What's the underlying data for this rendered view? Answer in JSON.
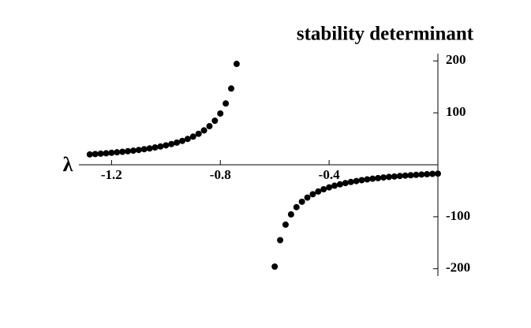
{
  "chart_data": {
    "type": "scatter",
    "title": "stability determinant",
    "x_axis_label": "λ",
    "x": [
      -1.28,
      -1.26,
      -1.24,
      -1.22,
      -1.2,
      -1.18,
      -1.16,
      -1.14,
      -1.12,
      -1.1,
      -1.08,
      -1.06,
      -1.04,
      -1.02,
      -1.0,
      -0.98,
      -0.96,
      -0.94,
      -0.92,
      -0.9,
      -0.88,
      -0.86,
      -0.84,
      -0.82,
      -0.8,
      -0.78,
      -0.76,
      -0.74,
      -0.6,
      -0.58,
      -0.56,
      -0.54,
      -0.52,
      -0.5,
      -0.48,
      -0.46,
      -0.44,
      -0.42,
      -0.4,
      -0.38,
      -0.36,
      -0.34,
      -0.32,
      -0.3,
      -0.28,
      -0.26,
      -0.24,
      -0.22,
      -0.2,
      -0.18,
      -0.16,
      -0.14,
      -0.12,
      -0.1,
      -0.08,
      -0.06,
      -0.04,
      -0.02,
      0.0
    ],
    "values": [
      20.0,
      20.7,
      21.4,
      22.2,
      23.1,
      24.0,
      25.0,
      26.1,
      27.2,
      28.5,
      30.0,
      31.5,
      33.3,
      35.2,
      37.4,
      39.9,
      42.7,
      46.0,
      49.8,
      54.2,
      59.6,
      66.2,
      74.3,
      84.8,
      98.7,
      118.0,
      146.8,
      194.2,
      -196.0,
      -145.1,
      -115.2,
      -95.5,
      -81.5,
      -71.1,
      -63.1,
      -56.7,
      -51.5,
      -47.1,
      -43.5,
      -40.3,
      -37.6,
      -35.2,
      -33.1,
      -31.3,
      -29.6,
      -28.1,
      -26.8,
      -25.6,
      -24.4,
      -23.4,
      -22.5,
      -21.6,
      -20.8,
      -20.1,
      -19.4,
      -18.7,
      -18.1,
      -17.5,
      -17.0
    ],
    "color": "#000000",
    "xlim": [
      -1.32,
      0
    ],
    "ylim": [
      -214,
      214
    ],
    "xticks": [
      -1.2,
      -0.8,
      -0.4
    ],
    "yticks": [
      -200,
      -100,
      100,
      200
    ]
  }
}
